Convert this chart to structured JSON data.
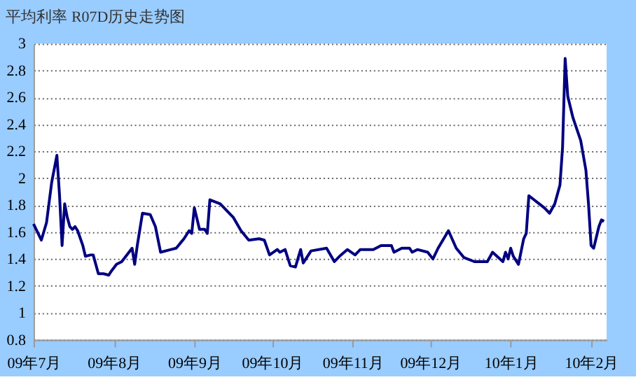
{
  "chart_data": {
    "type": "line",
    "title": "平均利率 R07D历史走势图",
    "x": [
      "2009-07-01",
      "2009-07-04",
      "2009-07-06",
      "2009-07-08",
      "2009-07-10",
      "2009-07-11",
      "2009-07-12",
      "2009-07-13",
      "2009-07-14",
      "2009-07-15",
      "2009-07-16",
      "2009-07-17",
      "2009-07-18",
      "2009-07-20",
      "2009-07-21",
      "2009-07-23",
      "2009-07-24",
      "2009-07-26",
      "2009-07-28",
      "2009-07-30",
      "2009-07-31",
      "2009-08-02",
      "2009-08-04",
      "2009-08-08",
      "2009-08-09",
      "2009-08-10",
      "2009-08-12",
      "2009-08-15",
      "2009-08-17",
      "2009-08-19",
      "2009-08-23",
      "2009-08-25",
      "2009-08-28",
      "2009-08-30",
      "2009-08-31",
      "2009-09-01",
      "2009-09-03",
      "2009-09-05",
      "2009-09-06",
      "2009-09-07",
      "2009-09-11",
      "2009-09-16",
      "2009-09-19",
      "2009-09-22",
      "2009-09-26",
      "2009-09-28",
      "2009-09-30",
      "2009-10-03",
      "2009-10-04",
      "2009-10-06",
      "2009-10-08",
      "2009-10-10",
      "2009-10-12",
      "2009-10-13",
      "2009-10-16",
      "2009-10-22",
      "2009-10-25",
      "2009-10-27",
      "2009-10-30",
      "2009-11-02",
      "2009-11-04",
      "2009-11-09",
      "2009-11-12",
      "2009-11-16",
      "2009-11-17",
      "2009-11-20",
      "2009-11-23",
      "2009-11-24",
      "2009-11-26",
      "2009-11-30",
      "2009-12-02",
      "2009-12-04",
      "2009-12-08",
      "2009-12-11",
      "2009-12-14",
      "2009-12-18",
      "2009-12-20",
      "2009-12-23",
      "2009-12-25",
      "2009-12-29",
      "2009-12-30",
      "2009-12-31",
      "2010-01-01",
      "2010-01-02",
      "2010-01-04",
      "2010-01-06",
      "2010-01-07",
      "2010-01-08",
      "2010-01-10",
      "2010-01-14",
      "2010-01-16",
      "2010-01-18",
      "2010-01-20",
      "2010-01-21",
      "2010-01-22",
      "2010-01-23",
      "2010-01-25",
      "2010-01-28",
      "2010-01-30",
      "2010-01-31",
      "2010-02-01",
      "2010-02-02",
      "2010-02-04",
      "2010-02-05",
      "2010-02-06"
    ],
    "series": [
      {
        "color": "#000080",
        "values": [
          1.66,
          1.54,
          1.67,
          1.97,
          2.17,
          1.88,
          1.5,
          1.81,
          1.71,
          1.64,
          1.62,
          1.64,
          1.61,
          1.5,
          1.42,
          1.43,
          1.43,
          1.29,
          1.29,
          1.28,
          1.31,
          1.36,
          1.38,
          1.48,
          1.36,
          1.5,
          1.74,
          1.73,
          1.64,
          1.45,
          1.47,
          1.48,
          1.55,
          1.61,
          1.59,
          1.78,
          1.62,
          1.62,
          1.59,
          1.84,
          1.81,
          1.71,
          1.61,
          1.54,
          1.55,
          1.54,
          1.43,
          1.47,
          1.45,
          1.47,
          1.35,
          1.34,
          1.47,
          1.37,
          1.46,
          1.48,
          1.38,
          1.42,
          1.47,
          1.43,
          1.47,
          1.47,
          1.5,
          1.5,
          1.45,
          1.48,
          1.48,
          1.45,
          1.47,
          1.45,
          1.4,
          1.48,
          1.61,
          1.48,
          1.41,
          1.38,
          1.38,
          1.38,
          1.45,
          1.38,
          1.45,
          1.4,
          1.48,
          1.42,
          1.36,
          1.55,
          1.59,
          1.87,
          1.84,
          1.78,
          1.74,
          1.81,
          1.95,
          2.23,
          2.89,
          2.61,
          2.45,
          2.28,
          2.06,
          1.81,
          1.5,
          1.48,
          1.64,
          1.69,
          1.68
        ]
      }
    ],
    "xlim": [
      "2009-07-01",
      "2010-02-07"
    ],
    "xticks": [
      {
        "value": "2009-07",
        "label": "09年7月"
      },
      {
        "value": "2009-08",
        "label": "09年8月"
      },
      {
        "value": "2009-09",
        "label": "09年9月"
      },
      {
        "value": "2009-10",
        "label": "09年10月"
      },
      {
        "value": "2009-11",
        "label": "09年11月"
      },
      {
        "value": "2009-12",
        "label": "09年12月"
      },
      {
        "value": "2010-01",
        "label": "10年1月"
      },
      {
        "value": "2010-02",
        "label": "10年2月"
      }
    ],
    "ylim": [
      0.8,
      3
    ],
    "yticks": [
      0.8,
      1,
      1.2,
      1.4,
      1.6,
      1.8,
      2,
      2.2,
      2.4,
      2.6,
      2.8,
      3
    ],
    "grid": "y",
    "marker": "none",
    "line_style": "solid"
  }
}
